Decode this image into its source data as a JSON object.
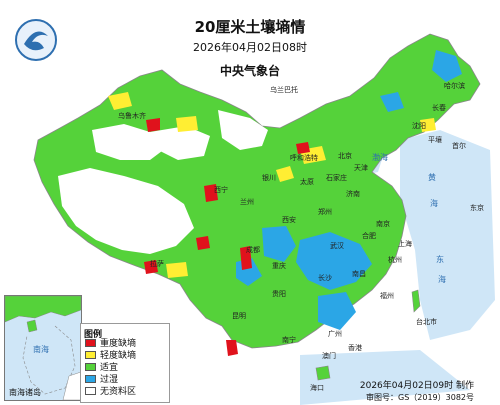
{
  "map": {
    "title": "20厘米土壤墒情",
    "datetime": "2026年04月02日08时",
    "agency": "中央气象台",
    "logo_icon": "cma-logo-icon"
  },
  "legend": {
    "title": "图例",
    "items": [
      {
        "label": "重度缺墒",
        "color": "#e0121c"
      },
      {
        "label": "轻度缺墒",
        "color": "#ffee33"
      },
      {
        "label": "适宜",
        "color": "#55d23a"
      },
      {
        "label": "过湿",
        "color": "#2ba6e6"
      },
      {
        "label": "无资料区",
        "color": "#ffffff"
      }
    ]
  },
  "footer": {
    "made": "2026年04月02日09时 制作",
    "approval": "审图号：GS（2019）3082号"
  },
  "inset": {
    "label": "南海诸岛",
    "sea": "南海"
  },
  "seas": [
    "黄",
    "海",
    "东",
    "海",
    "南",
    "海",
    "渤海"
  ],
  "cities": [
    "哈尔滨",
    "长春",
    "沈阳",
    "北京",
    "天津",
    "石家庄",
    "太原",
    "济南",
    "郑州",
    "西安",
    "兰州",
    "西宁",
    "银川",
    "呼和浩特",
    "乌鲁木齐",
    "拉萨",
    "成都",
    "重庆",
    "贵阳",
    "昆明",
    "南宁",
    "广州",
    "长沙",
    "武汉",
    "合肥",
    "南京",
    "上海",
    "杭州",
    "南昌",
    "福州",
    "台北市",
    "香港",
    "澳门",
    "海口",
    "首尔",
    "平壤",
    "乌兰巴托",
    "东京"
  ],
  "colors": {
    "water": "#cfe6f7",
    "dry_severe": "#e0121c",
    "dry_light": "#ffee33",
    "suitable": "#55d23a",
    "wet": "#2ba6e6",
    "border": "#888888"
  }
}
